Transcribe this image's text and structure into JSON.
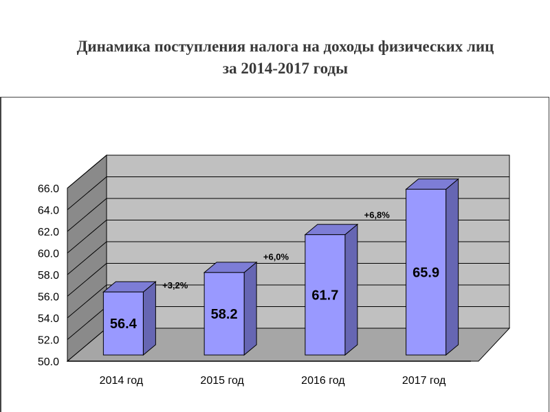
{
  "chart_data": {
    "type": "bar",
    "title": [
      "Динамика поступления налога на доходы физических лиц",
      "за 2014-2017 годы"
    ],
    "categories": [
      "2014 год",
      "2015 год",
      "2016 год",
      "2017 год"
    ],
    "values": [
      56.4,
      58.2,
      61.7,
      65.9
    ],
    "value_labels": [
      "56.4",
      "58.2",
      "61.7",
      "65.9"
    ],
    "growth_labels": [
      "+3,2%",
      "+6,0%",
      "+6,8%"
    ],
    "ylim": [
      50,
      66
    ],
    "yticks": [
      50,
      52,
      54,
      56,
      58,
      60,
      62,
      64,
      66
    ],
    "ytick_labels": [
      "50.0",
      "52.0",
      "54.0",
      "56.0",
      "58.0",
      "60.0",
      "62.0",
      "64.0",
      "66.0"
    ],
    "grid": true,
    "legend": "none",
    "colors": {
      "bar_front": "#9999ff",
      "bar_side": "#6666b3",
      "bar_top": "#7d7dd6",
      "wall": "#c0c0c0",
      "floor": "#a6a6a6",
      "side_wall": "#8a8a8a"
    }
  }
}
